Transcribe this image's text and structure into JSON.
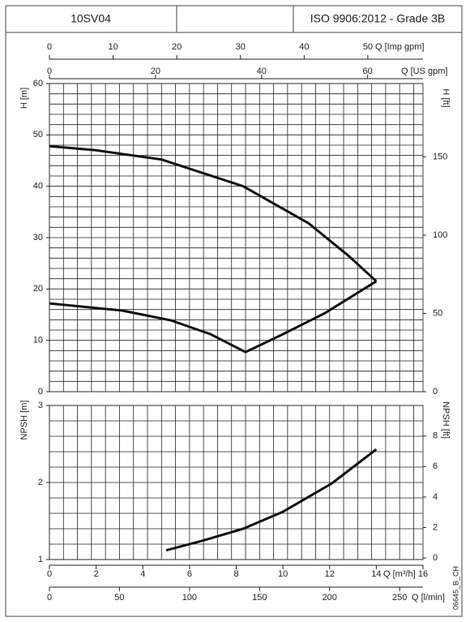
{
  "header": {
    "model": "10SV04",
    "standard": "ISO 9906:2012 - Grade 3B"
  },
  "code": "06645_B_CH",
  "x_axes": [
    {
      "label": "Q [Imp gpm]",
      "xlim": [
        0,
        58.66
      ],
      "xticks": [
        0,
        10,
        20,
        30,
        40,
        50
      ]
    },
    {
      "label": "Q [US gpm]",
      "xlim": [
        0,
        70.45
      ],
      "xticks": [
        0,
        20,
        40,
        60
      ]
    },
    {
      "label": "Q [m³/h]",
      "xlim": [
        0,
        16
      ],
      "xticks": [
        0,
        2,
        4,
        6,
        8,
        10,
        12,
        14,
        16
      ]
    },
    {
      "label": "Q [l/min]",
      "xlim": [
        0,
        266.67
      ],
      "xticks": [
        0,
        50,
        100,
        150,
        200,
        250
      ],
      "grid": [
        0,
        10,
        20,
        30,
        40,
        50,
        60,
        70,
        80,
        90,
        100,
        110,
        120,
        130,
        140,
        150,
        160,
        170,
        180,
        190,
        200,
        210,
        220,
        230,
        240,
        250,
        260
      ]
    }
  ],
  "chart_data": [
    {
      "type": "line",
      "ylabel": "H [m]",
      "y2label": "H [ft]",
      "ylim": [
        0,
        60
      ],
      "yticks": [
        0,
        10,
        20,
        30,
        40,
        50,
        60
      ],
      "ygrid": [
        0,
        2,
        4,
        6,
        8,
        10,
        12,
        14,
        16,
        18,
        20,
        22,
        24,
        26,
        28,
        30,
        32,
        34,
        36,
        38,
        40,
        42,
        44,
        46,
        48,
        50,
        52,
        54,
        56,
        58,
        60
      ],
      "y2lim": [
        0,
        196.85
      ],
      "y2ticks": [
        0,
        50,
        100,
        150
      ],
      "series": [
        {
          "color": "#111111",
          "x": [
            0,
            2,
            4.8,
            8.3,
            11.1,
            12.8,
            14
          ],
          "values": [
            47.8,
            47,
            45.2,
            40,
            32.8,
            26.5,
            21.5
          ]
        },
        {
          "color": "#111111",
          "x": [
            0,
            3.1,
            5.2,
            6.9,
            8.4,
            10,
            11.8,
            14
          ],
          "values": [
            17.2,
            15.8,
            13.9,
            11.2,
            7.7,
            11.2,
            15.3,
            21.5
          ]
        }
      ]
    },
    {
      "type": "line",
      "ylabel": "NPSH [m]",
      "y2label": "NPSH [ft]",
      "ylim": [
        1,
        3
      ],
      "yticks": [
        1,
        2,
        3
      ],
      "ygrid": [
        1,
        1.2,
        1.4,
        1.6,
        1.8,
        2,
        2.2,
        2.4,
        2.6,
        2.8,
        3
      ],
      "y2lim": [
        -0.1,
        10
      ],
      "y2ticks": [
        0,
        2,
        4,
        6,
        8
      ],
      "series": [
        {
          "color": "#111111",
          "x": [
            5,
            6.5,
            8.3,
            10,
            12.1,
            14
          ],
          "values": [
            1.12,
            1.24,
            1.4,
            1.62,
            1.99,
            2.43
          ]
        }
      ]
    }
  ]
}
